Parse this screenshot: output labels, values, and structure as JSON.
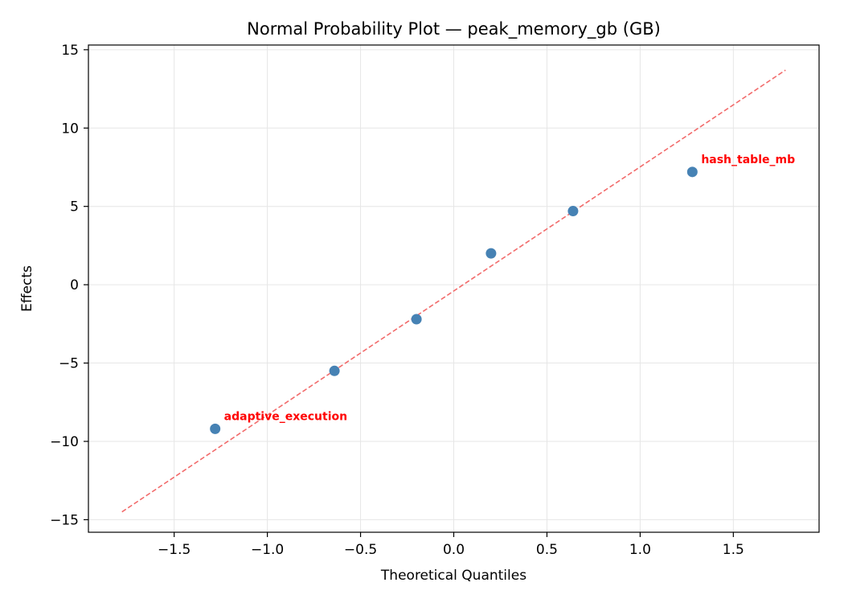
{
  "chart_data": {
    "type": "scatter",
    "title": "Normal Probability Plot — peak_memory_gb (GB)",
    "xlabel": "Theoretical Quantiles",
    "ylabel": "Effects",
    "xlim": [
      -1.96,
      1.96
    ],
    "ylim": [
      -15.8,
      15.3
    ],
    "xticks": [
      -1.5,
      -1.0,
      -0.5,
      0.0,
      0.5,
      1.0,
      1.5
    ],
    "xtick_labels": [
      "−1.5",
      "−1.0",
      "−0.5",
      "0.0",
      "0.5",
      "1.0",
      "1.5"
    ],
    "yticks": [
      -15,
      -10,
      -5,
      0,
      5,
      10,
      15
    ],
    "ytick_labels": [
      "−15",
      "−10",
      "−5",
      "0",
      "5",
      "10",
      "15"
    ],
    "grid": true,
    "points": [
      {
        "x": -1.28,
        "y": -9.2
      },
      {
        "x": -0.64,
        "y": -5.5
      },
      {
        "x": -0.2,
        "y": -2.2
      },
      {
        "x": 0.2,
        "y": 2.0
      },
      {
        "x": 0.64,
        "y": 4.7
      },
      {
        "x": 1.28,
        "y": 7.2
      }
    ],
    "reference_line": {
      "x": [
        -1.78,
        1.78
      ],
      "y": [
        -14.5,
        13.7
      ]
    },
    "annotations": [
      {
        "text": "adaptive_execution",
        "x": -1.28,
        "y": -9.2
      },
      {
        "text": "hash_table_mb",
        "x": 1.28,
        "y": 7.2
      }
    ],
    "colors": {
      "points": "#4682b4",
      "reference_line": "#f26b6b",
      "annotation": "#ff0000",
      "grid": "#e6e6e6"
    }
  }
}
